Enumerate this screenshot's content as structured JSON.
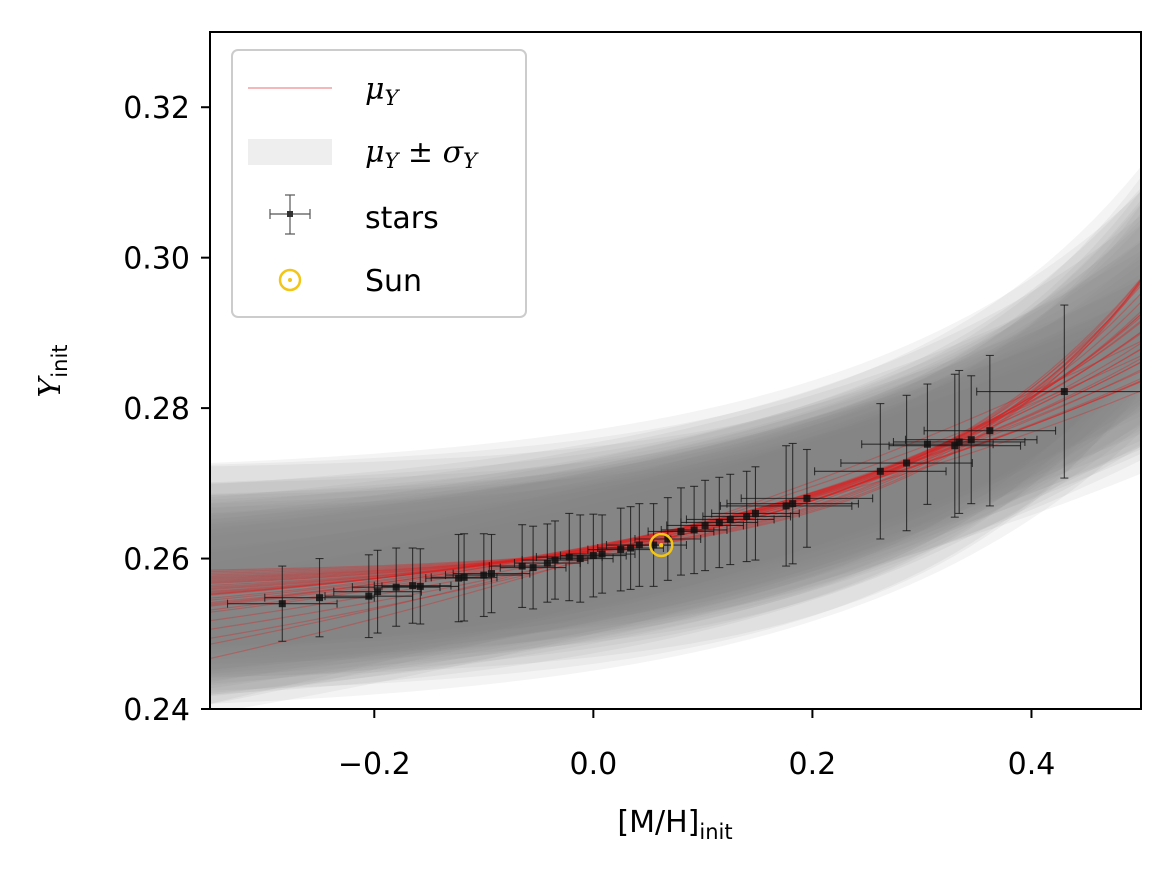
{
  "chart_data": {
    "type": "scatter",
    "xlabel": "[M/H]",
    "xlabel_sub": "init",
    "ylabel": "Y",
    "ylabel_sub": "init",
    "xlim": [
      -0.35,
      0.5
    ],
    "ylim": [
      0.24,
      0.33
    ],
    "xticks": [
      -0.2,
      0.0,
      0.2,
      0.4
    ],
    "xtick_labels": [
      "−0.2",
      "0.0",
      "0.2",
      "0.4"
    ],
    "yticks": [
      0.24,
      0.26,
      0.28,
      0.3,
      0.32
    ],
    "ytick_labels": [
      "0.24",
      "0.26",
      "0.28",
      "0.30",
      "0.32"
    ],
    "grid": false,
    "legend_position": "upper-left",
    "legend": [
      {
        "label": "μ",
        "sub": "Y",
        "suffix": "",
        "kind": "line",
        "color": "#f1a0a0"
      },
      {
        "label": "μ",
        "sub": "Y",
        "suffix": " ± σ",
        "suffix_sub": "Y",
        "kind": "band",
        "color": "#eeeeee"
      },
      {
        "label": "stars",
        "kind": "errorbar",
        "color": "#222222"
      },
      {
        "label": "Sun",
        "kind": "sun",
        "color": "#f2c516"
      }
    ],
    "colors": {
      "model_line": "#dd2020",
      "band": "#808080",
      "stars": "#111111",
      "sun": "#f2c516"
    },
    "model": {
      "form": "Y = Y0 + a * exp(b * x)",
      "curves": [
        {
          "Y0": 0.21,
          "a": 0.0503,
          "b": 0.9,
          "sigma": 0.006
        },
        {
          "Y0": 0.22,
          "a": 0.0406,
          "b": 1.0,
          "sigma": 0.008
        },
        {
          "Y0": 0.228,
          "a": 0.032,
          "b": 1.15,
          "sigma": 0.01
        },
        {
          "Y0": 0.232,
          "a": 0.0283,
          "b": 1.2,
          "sigma": 0.007
        },
        {
          "Y0": 0.236,
          "a": 0.0248,
          "b": 1.3,
          "sigma": 0.009
        },
        {
          "Y0": 0.24,
          "a": 0.021,
          "b": 1.4,
          "sigma": 0.011
        },
        {
          "Y0": 0.242,
          "a": 0.0192,
          "b": 1.55,
          "sigma": 0.008
        },
        {
          "Y0": 0.244,
          "a": 0.0175,
          "b": 1.65,
          "sigma": 0.01
        },
        {
          "Y0": 0.245,
          "a": 0.0163,
          "b": 1.8,
          "sigma": 0.012
        },
        {
          "Y0": 0.246,
          "a": 0.0155,
          "b": 1.9,
          "sigma": 0.009
        },
        {
          "Y0": 0.247,
          "a": 0.0144,
          "b": 2.0,
          "sigma": 0.011
        },
        {
          "Y0": 0.248,
          "a": 0.0135,
          "b": 2.1,
          "sigma": 0.007
        },
        {
          "Y0": 0.249,
          "a": 0.0126,
          "b": 2.25,
          "sigma": 0.01
        },
        {
          "Y0": 0.25,
          "a": 0.0117,
          "b": 2.35,
          "sigma": 0.013
        },
        {
          "Y0": 0.2505,
          "a": 0.0112,
          "b": 2.45,
          "sigma": 0.008
        },
        {
          "Y0": 0.251,
          "a": 0.0106,
          "b": 2.6,
          "sigma": 0.01
        },
        {
          "Y0": 0.2515,
          "a": 0.01,
          "b": 2.7,
          "sigma": 0.012
        },
        {
          "Y0": 0.252,
          "a": 0.0094,
          "b": 2.8,
          "sigma": 0.009
        },
        {
          "Y0": 0.2525,
          "a": 0.0089,
          "b": 2.95,
          "sigma": 0.011
        },
        {
          "Y0": 0.253,
          "a": 0.0084,
          "b": 3.05,
          "sigma": 0.014
        },
        {
          "Y0": 0.2535,
          "a": 0.0078,
          "b": 3.2,
          "sigma": 0.01
        },
        {
          "Y0": 0.254,
          "a": 0.0072,
          "b": 3.35,
          "sigma": 0.008
        },
        {
          "Y0": 0.2545,
          "a": 0.0066,
          "b": 3.5,
          "sigma": 0.012
        },
        {
          "Y0": 0.255,
          "a": 0.0061,
          "b": 3.65,
          "sigma": 0.016
        },
        {
          "Y0": 0.2553,
          "a": 0.0058,
          "b": 3.8,
          "sigma": 0.011
        },
        {
          "Y0": 0.2556,
          "a": 0.0055,
          "b": 3.95,
          "sigma": 0.009
        },
        {
          "Y0": 0.2559,
          "a": 0.0052,
          "b": 4.1,
          "sigma": 0.013
        },
        {
          "Y0": 0.2562,
          "a": 0.0049,
          "b": 4.25,
          "sigma": 0.01
        },
        {
          "Y0": 0.2565,
          "a": 0.0045,
          "b": 4.4,
          "sigma": 0.015
        },
        {
          "Y0": 0.2568,
          "a": 0.0041,
          "b": 4.55,
          "sigma": 0.011
        },
        {
          "Y0": 0.2571,
          "a": 0.0038,
          "b": 4.7,
          "sigma": 0.009
        },
        {
          "Y0": 0.2574,
          "a": 0.0035,
          "b": 4.85,
          "sigma": 0.012
        },
        {
          "Y0": 0.2577,
          "a": 0.0032,
          "b": 5.0,
          "sigma": 0.014
        },
        {
          "Y0": 0.258,
          "a": 0.0029,
          "b": 5.2,
          "sigma": 0.01
        }
      ]
    },
    "stars": [
      {
        "x": -0.284,
        "y": 0.254,
        "xerr": 0.05,
        "yerr": 0.005
      },
      {
        "x": -0.25,
        "y": 0.2548,
        "xerr": 0.05,
        "yerr": 0.0052
      },
      {
        "x": -0.205,
        "y": 0.255,
        "xerr": 0.04,
        "yerr": 0.0055
      },
      {
        "x": -0.197,
        "y": 0.2556,
        "xerr": 0.04,
        "yerr": 0.0055
      },
      {
        "x": -0.18,
        "y": 0.2562,
        "xerr": 0.04,
        "yerr": 0.0052
      },
      {
        "x": -0.165,
        "y": 0.2564,
        "xerr": 0.035,
        "yerr": 0.005
      },
      {
        "x": -0.158,
        "y": 0.2563,
        "xerr": 0.035,
        "yerr": 0.005
      },
      {
        "x": -0.123,
        "y": 0.2574,
        "xerr": 0.03,
        "yerr": 0.0058
      },
      {
        "x": -0.118,
        "y": 0.2575,
        "xerr": 0.03,
        "yerr": 0.0058
      },
      {
        "x": -0.1,
        "y": 0.2578,
        "xerr": 0.035,
        "yerr": 0.0055
      },
      {
        "x": -0.093,
        "y": 0.258,
        "xerr": 0.035,
        "yerr": 0.0052
      },
      {
        "x": -0.065,
        "y": 0.259,
        "xerr": 0.03,
        "yerr": 0.0055
      },
      {
        "x": -0.055,
        "y": 0.2588,
        "xerr": 0.03,
        "yerr": 0.0055
      },
      {
        "x": -0.042,
        "y": 0.2594,
        "xerr": 0.03,
        "yerr": 0.0052
      },
      {
        "x": -0.035,
        "y": 0.2598,
        "xerr": 0.03,
        "yerr": 0.0052
      },
      {
        "x": -0.022,
        "y": 0.2602,
        "xerr": 0.03,
        "yerr": 0.0058
      },
      {
        "x": -0.012,
        "y": 0.26,
        "xerr": 0.03,
        "yerr": 0.0058
      },
      {
        "x": 0.0,
        "y": 0.2604,
        "xerr": 0.03,
        "yerr": 0.0055
      },
      {
        "x": 0.008,
        "y": 0.2606,
        "xerr": 0.03,
        "yerr": 0.0052
      },
      {
        "x": 0.025,
        "y": 0.2612,
        "xerr": 0.03,
        "yerr": 0.0055
      },
      {
        "x": 0.034,
        "y": 0.2614,
        "xerr": 0.03,
        "yerr": 0.0055
      },
      {
        "x": 0.042,
        "y": 0.2618,
        "xerr": 0.03,
        "yerr": 0.0055
      },
      {
        "x": 0.055,
        "y": 0.2618,
        "xerr": 0.03,
        "yerr": 0.0055
      },
      {
        "x": 0.068,
        "y": 0.2626,
        "xerr": 0.03,
        "yerr": 0.0055
      },
      {
        "x": 0.08,
        "y": 0.2636,
        "xerr": 0.03,
        "yerr": 0.0058
      },
      {
        "x": 0.092,
        "y": 0.2638,
        "xerr": 0.03,
        "yerr": 0.0058
      },
      {
        "x": 0.102,
        "y": 0.2644,
        "xerr": 0.035,
        "yerr": 0.006
      },
      {
        "x": 0.115,
        "y": 0.2648,
        "xerr": 0.035,
        "yerr": 0.006
      },
      {
        "x": 0.125,
        "y": 0.2652,
        "xerr": 0.04,
        "yerr": 0.006
      },
      {
        "x": 0.14,
        "y": 0.2656,
        "xerr": 0.04,
        "yerr": 0.006
      },
      {
        "x": 0.148,
        "y": 0.266,
        "xerr": 0.04,
        "yerr": 0.0062
      },
      {
        "x": 0.176,
        "y": 0.267,
        "xerr": 0.06,
        "yerr": 0.008
      },
      {
        "x": 0.182,
        "y": 0.2673,
        "xerr": 0.06,
        "yerr": 0.008
      },
      {
        "x": 0.195,
        "y": 0.268,
        "xerr": 0.06,
        "yerr": 0.0065
      },
      {
        "x": 0.262,
        "y": 0.2716,
        "xerr": 0.06,
        "yerr": 0.009
      },
      {
        "x": 0.286,
        "y": 0.2727,
        "xerr": 0.06,
        "yerr": 0.009
      },
      {
        "x": 0.305,
        "y": 0.2752,
        "xerr": 0.06,
        "yerr": 0.008
      },
      {
        "x": 0.33,
        "y": 0.275,
        "xerr": 0.06,
        "yerr": 0.0095
      },
      {
        "x": 0.334,
        "y": 0.2755,
        "xerr": 0.06,
        "yerr": 0.0095
      },
      {
        "x": 0.345,
        "y": 0.2758,
        "xerr": 0.06,
        "yerr": 0.0085
      },
      {
        "x": 0.362,
        "y": 0.277,
        "xerr": 0.06,
        "yerr": 0.01
      },
      {
        "x": 0.43,
        "y": 0.2822,
        "xerr": 0.08,
        "yerr": 0.0115
      }
    ],
    "sun": {
      "x": 0.062,
      "y": 0.2618
    }
  }
}
